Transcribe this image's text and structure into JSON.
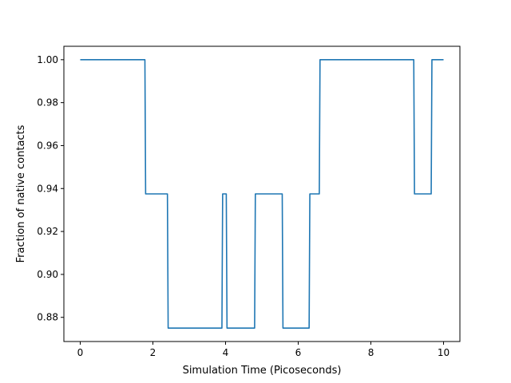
{
  "chart_data": {
    "type": "line",
    "title": "",
    "xlabel": "Simulation Time (Picoseconds)",
    "ylabel": "Fraction of native contacts",
    "xlim": [
      -0.45,
      10.45
    ],
    "ylim": [
      0.86875,
      1.00625
    ],
    "grid": false,
    "xticks": [
      {
        "value": 0,
        "label": "0"
      },
      {
        "value": 2,
        "label": "2"
      },
      {
        "value": 4,
        "label": "4"
      },
      {
        "value": 6,
        "label": "6"
      },
      {
        "value": 8,
        "label": "8"
      },
      {
        "value": 10,
        "label": "10"
      }
    ],
    "yticks": [
      {
        "value": 0.88,
        "label": "0.88"
      },
      {
        "value": 0.9,
        "label": "0.90"
      },
      {
        "value": 0.92,
        "label": "0.92"
      },
      {
        "value": 0.94,
        "label": "0.94"
      },
      {
        "value": 0.96,
        "label": "0.96"
      },
      {
        "value": 0.98,
        "label": "0.98"
      },
      {
        "value": 1.0,
        "label": "1.00"
      }
    ],
    "series": [
      {
        "color": "#1f77b4",
        "x": [
          0,
          1.78,
          1.8,
          2.4,
          2.42,
          3.9,
          3.92,
          4.02,
          4.04,
          4.8,
          4.82,
          5.56,
          5.58,
          6.3,
          6.32,
          6.58,
          6.6,
          9.18,
          9.2,
          9.66,
          9.68,
          10.0
        ],
        "y": [
          1.0,
          1.0,
          0.9375,
          0.9375,
          0.875,
          0.875,
          0.9375,
          0.9375,
          0.875,
          0.875,
          0.9375,
          0.9375,
          0.875,
          0.875,
          0.9375,
          0.9375,
          1.0,
          1.0,
          0.9375,
          0.9375,
          1.0,
          1.0
        ]
      }
    ]
  }
}
